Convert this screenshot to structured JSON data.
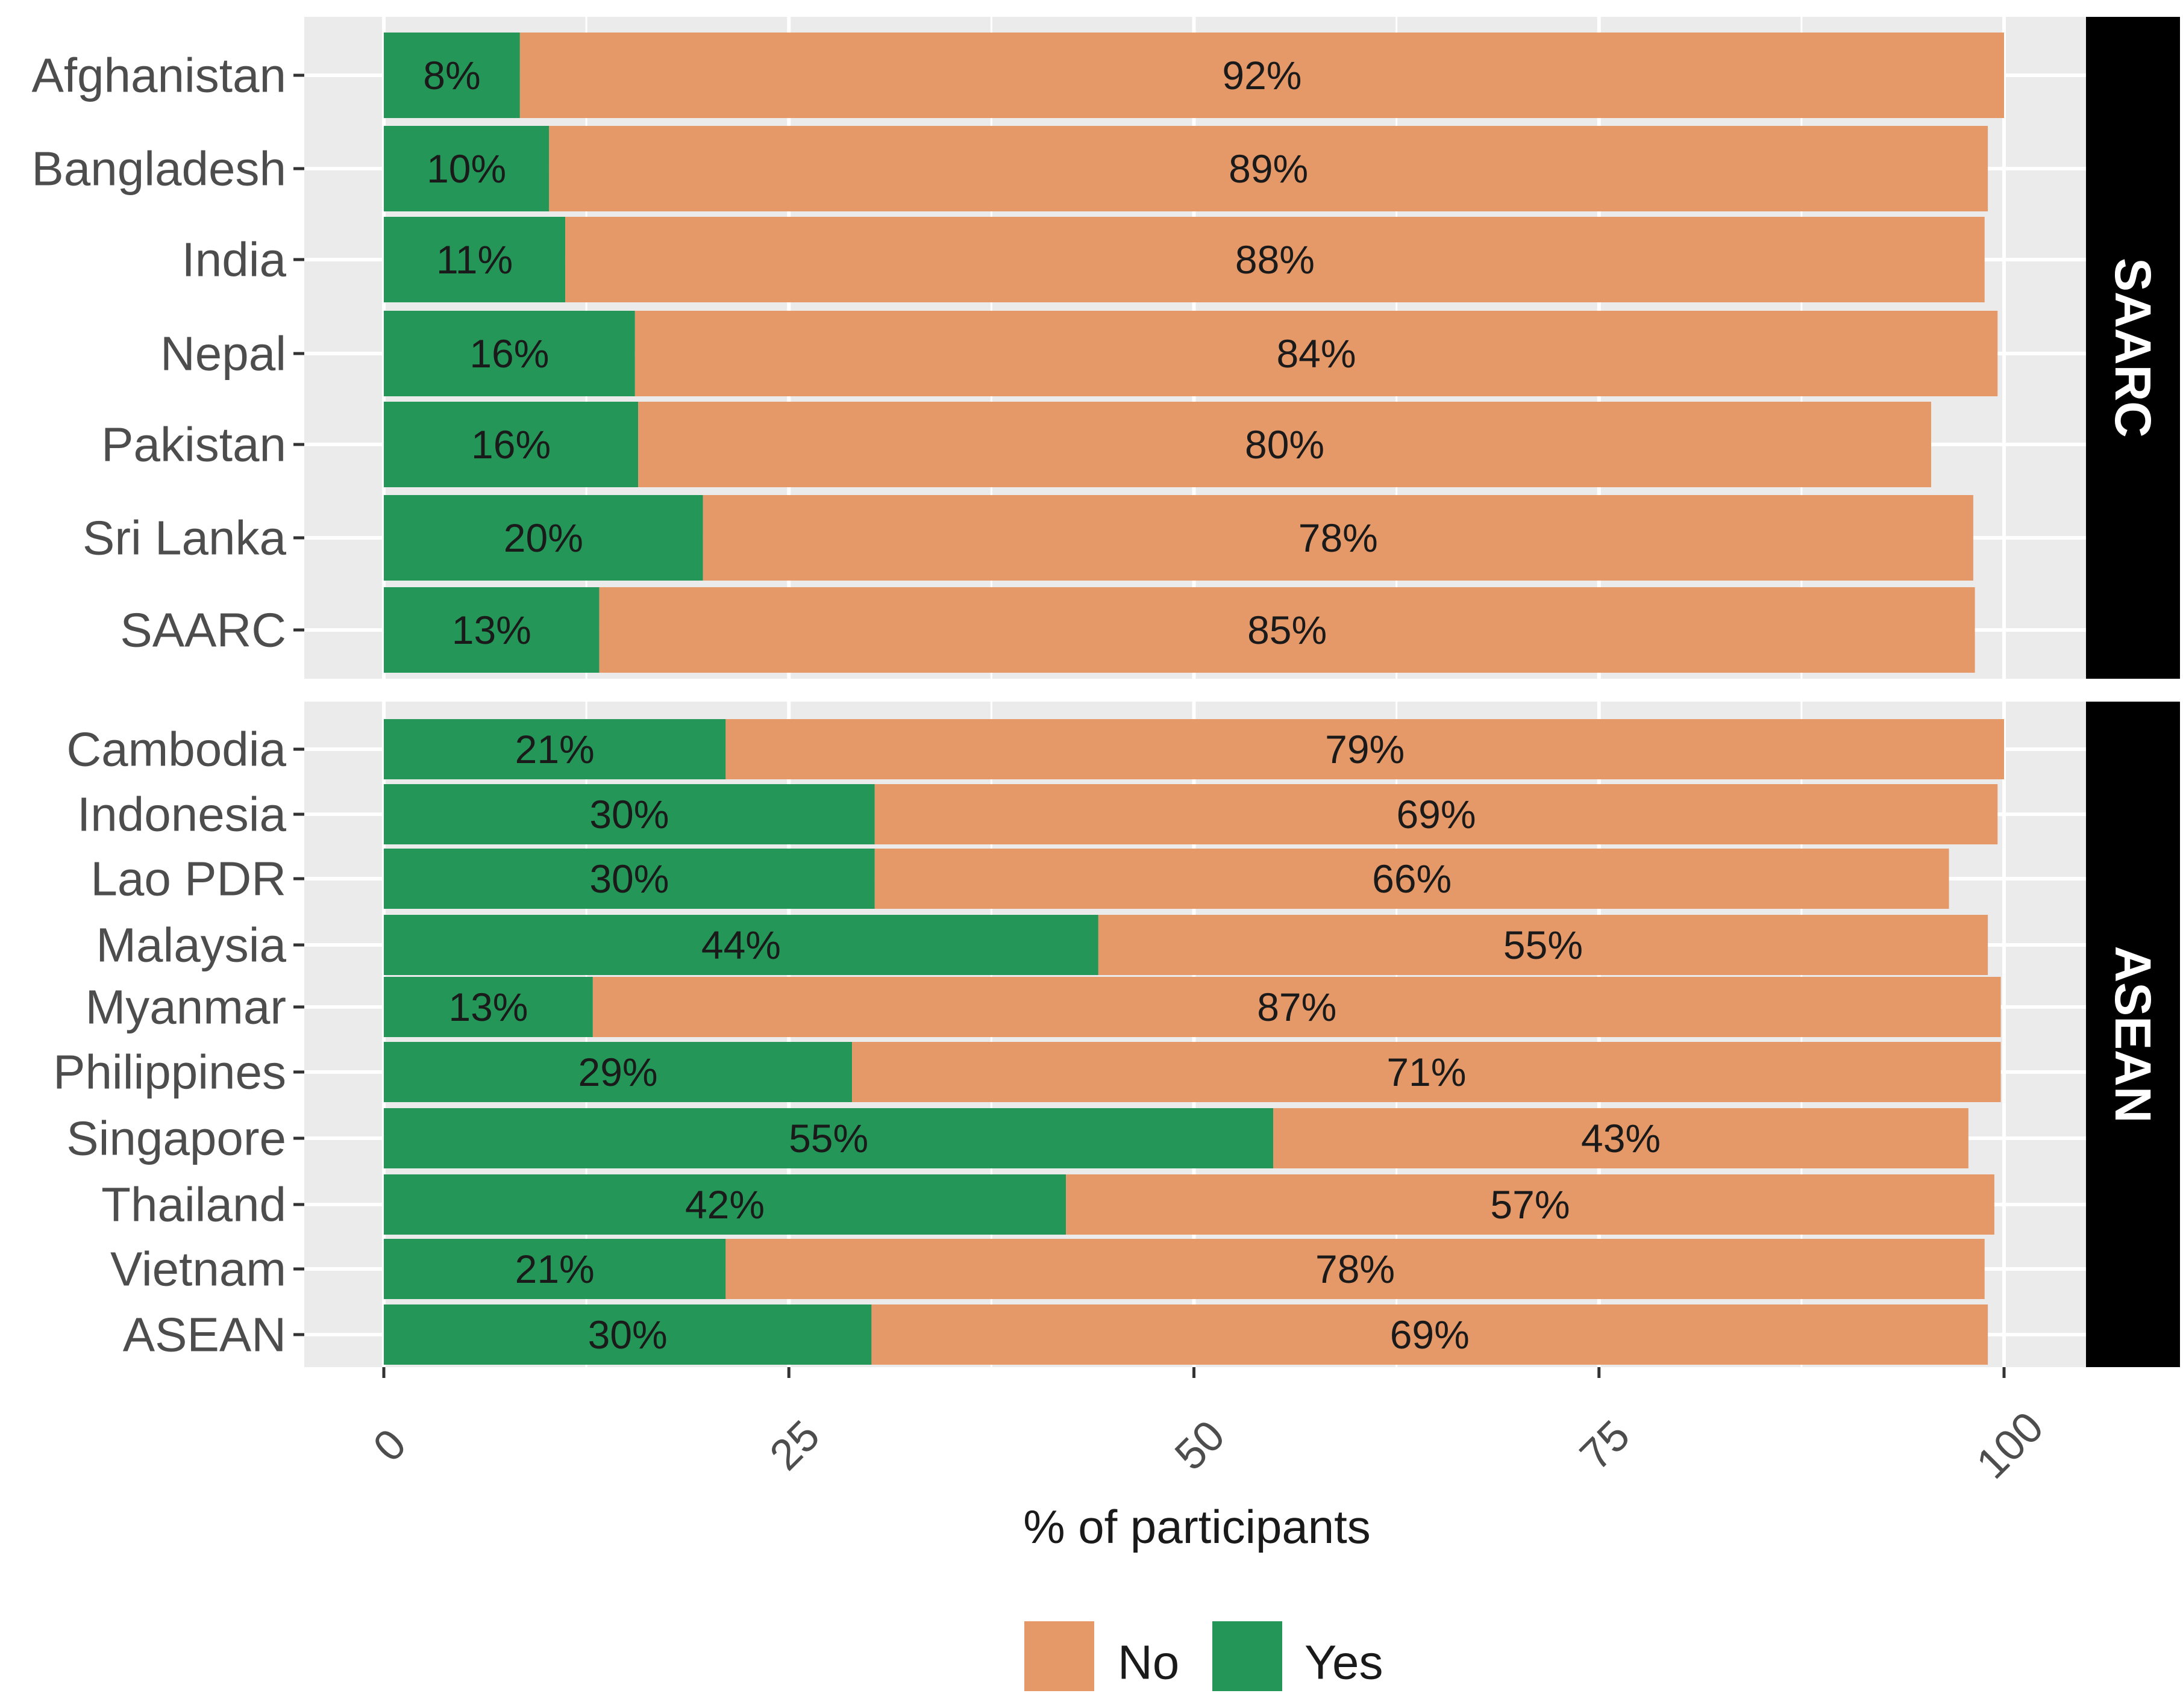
{
  "chart_data": {
    "type": "bar",
    "orientation": "horizontal",
    "stacked": true,
    "xlabel": "% of participants",
    "ylabel": "",
    "xlim": [
      0,
      100
    ],
    "xticks": [
      0,
      25,
      50,
      75,
      100
    ],
    "tick_labels": [
      "0",
      "25",
      "50",
      "75",
      "100"
    ],
    "legend": {
      "position": "bottom",
      "entries": [
        {
          "key": "no",
          "label": "No"
        },
        {
          "key": "yes",
          "label": "Yes"
        }
      ]
    },
    "colors": {
      "yes": "#239658",
      "no": "#e59868",
      "panel_bg": "#ebebeb",
      "grid": "#ffffff",
      "strip_bg": "#000000",
      "strip_text": "#ffffff"
    },
    "panels": [
      {
        "name": "SAARC",
        "rows": [
          {
            "category": "Afghanistan",
            "yes": 8.4,
            "no": 91.6,
            "yes_label": "8%",
            "no_label": "92%"
          },
          {
            "category": "Bangladesh",
            "yes": 10.2,
            "no": 88.8,
            "yes_label": "10%",
            "no_label": "89%"
          },
          {
            "category": "India",
            "yes": 11.2,
            "no": 87.6,
            "yes_label": "11%",
            "no_label": "88%"
          },
          {
            "category": "Nepal",
            "yes": 15.5,
            "no": 84.1,
            "yes_label": "16%",
            "no_label": "84%"
          },
          {
            "category": "Pakistan",
            "yes": 15.7,
            "no": 79.8,
            "yes_label": "16%",
            "no_label": "80%"
          },
          {
            "category": "Sri Lanka",
            "yes": 19.7,
            "no": 78.4,
            "yes_label": "20%",
            "no_label": "78%"
          },
          {
            "category": "SAARC",
            "yes": 13.3,
            "no": 84.9,
            "yes_label": "13%",
            "no_label": "85%"
          }
        ]
      },
      {
        "name": "ASEAN",
        "rows": [
          {
            "category": "Cambodia",
            "yes": 21.1,
            "no": 78.9,
            "yes_label": "21%",
            "no_label": "79%"
          },
          {
            "category": "Indonesia",
            "yes": 30.3,
            "no": 69.3,
            "yes_label": "30%",
            "no_label": "69%"
          },
          {
            "category": "Lao PDR",
            "yes": 30.3,
            "no": 66.3,
            "yes_label": "30%",
            "no_label": "66%"
          },
          {
            "category": "Malaysia",
            "yes": 44.1,
            "no": 54.9,
            "yes_label": "44%",
            "no_label": "55%"
          },
          {
            "category": "Myanmar",
            "yes": 12.9,
            "no": 86.9,
            "yes_label": "13%",
            "no_label": "87%"
          },
          {
            "category": "Philippines",
            "yes": 28.9,
            "no": 70.9,
            "yes_label": "29%",
            "no_label": "71%"
          },
          {
            "category": "Singapore",
            "yes": 54.9,
            "no": 42.9,
            "yes_label": "55%",
            "no_label": "43%"
          },
          {
            "category": "Thailand",
            "yes": 42.1,
            "no": 57.3,
            "yes_label": "42%",
            "no_label": "57%"
          },
          {
            "category": "Vietnam",
            "yes": 21.1,
            "no": 77.7,
            "yes_label": "21%",
            "no_label": "78%"
          },
          {
            "category": "ASEAN",
            "yes": 30.1,
            "no": 68.9,
            "yes_label": "30%",
            "no_label": "69%"
          }
        ]
      }
    ]
  }
}
